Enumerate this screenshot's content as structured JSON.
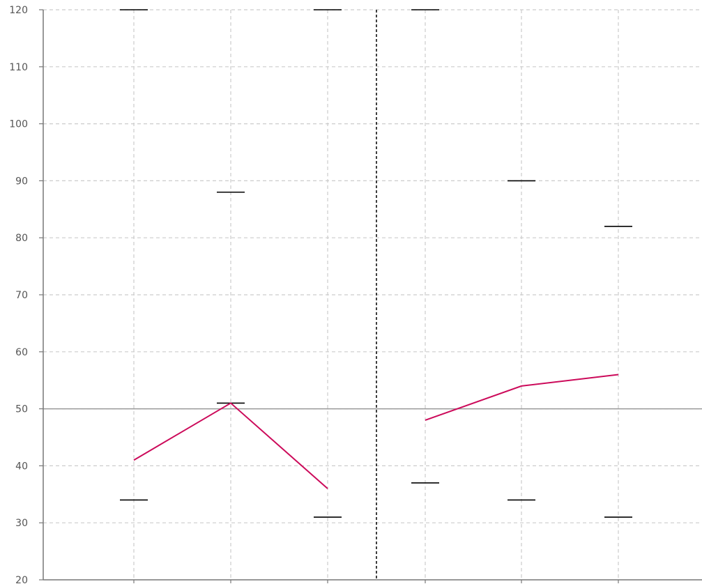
{
  "chart_data": {
    "type": "line",
    "title": "",
    "xlabel": "",
    "ylabel": "",
    "ylim": [
      20,
      120
    ],
    "yticks": [
      20,
      30,
      40,
      50,
      60,
      70,
      80,
      90,
      100,
      110,
      120
    ],
    "reference_line_y": 50,
    "grid": true,
    "panels": [
      {
        "x": [
          1,
          2,
          3
        ],
        "series": [
          {
            "values": [
              41,
              51,
              36
            ]
          }
        ],
        "range_upper": [
          120,
          88,
          120
        ],
        "range_lower": [
          34,
          51,
          31
        ]
      },
      {
        "x": [
          1,
          2,
          3
        ],
        "series": [
          {
            "values": [
              48,
              54,
              56
            ]
          }
        ],
        "range_upper": [
          120,
          90,
          82
        ],
        "range_lower": [
          37,
          34,
          31
        ]
      }
    ]
  },
  "colors": {
    "series_line": "#cc0a5a",
    "range_marker": "#000000",
    "grid": "#cccccc",
    "axis": "#777777",
    "reference_line": "#999999",
    "divider": "#000000"
  }
}
